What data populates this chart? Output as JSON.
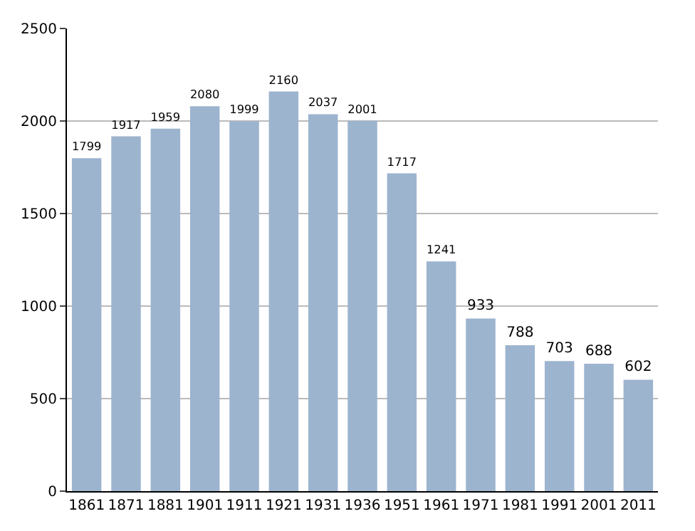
{
  "chart_data": {
    "type": "bar",
    "categories": [
      "1861",
      "1871",
      "1881",
      "1901",
      "1911",
      "1921",
      "1931",
      "1936",
      "1951",
      "1961",
      "1971",
      "1981",
      "1991",
      "2001",
      "2011"
    ],
    "values": [
      1799,
      1917,
      1959,
      2080,
      1999,
      2160,
      2037,
      2001,
      1717,
      1241,
      933,
      788,
      703,
      688,
      602
    ],
    "color": "#9db4cf",
    "ylim": [
      0,
      2500
    ],
    "yticks": [
      0,
      500,
      1000,
      1500,
      2000,
      2500
    ],
    "grid": "y",
    "data_labels": true
  }
}
